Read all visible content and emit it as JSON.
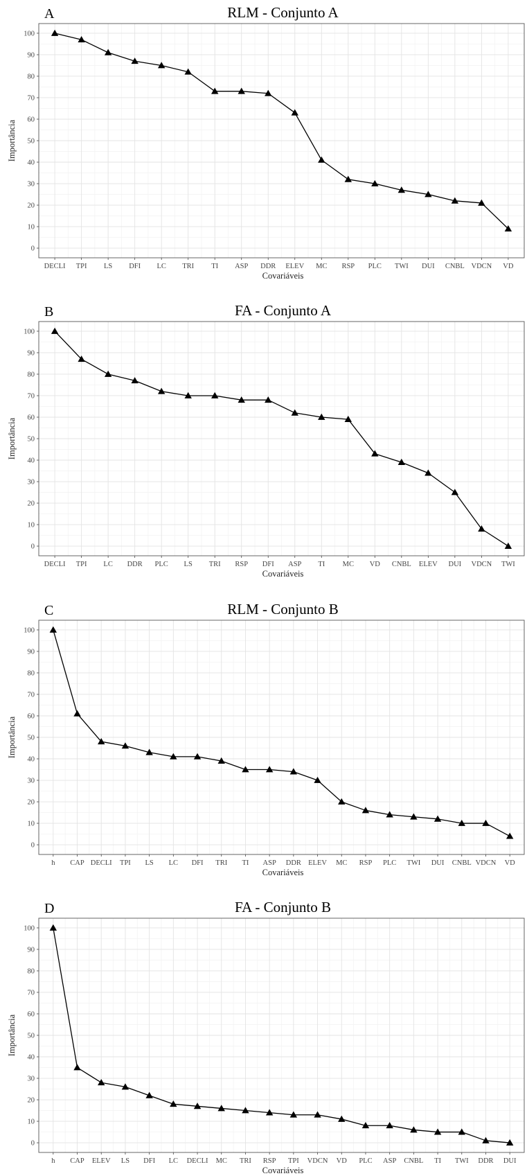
{
  "chart_data": [
    {
      "type": "line",
      "panel_letter": "A",
      "title": "RLM - Conjunto A",
      "xlabel": "Covariáveis",
      "ylabel": "Importância",
      "ylim": [
        0,
        100
      ],
      "yticks": [
        0,
        10,
        20,
        30,
        40,
        50,
        60,
        70,
        80,
        90,
        100
      ],
      "grid": true,
      "categories": [
        "DECLI",
        "TPI",
        "LS",
        "DFI",
        "LC",
        "TRI",
        "TI",
        "ASP",
        "DDR",
        "ELEV",
        "MC",
        "RSP",
        "PLC",
        "TWI",
        "DUI",
        "CNBL",
        "VDCN",
        "VD"
      ],
      "values": [
        100,
        97,
        91,
        87,
        85,
        82,
        73,
        73,
        72,
        63,
        41,
        32,
        30,
        27,
        25,
        22,
        21,
        9
      ]
    },
    {
      "type": "line",
      "panel_letter": "B",
      "title": "FA - Conjunto A",
      "xlabel": "Covariáveis",
      "ylabel": "Importância",
      "ylim": [
        0,
        100
      ],
      "yticks": [
        0,
        10,
        20,
        30,
        40,
        50,
        60,
        70,
        80,
        90,
        100
      ],
      "grid": true,
      "categories": [
        "DECLI",
        "TPI",
        "LC",
        "DDR",
        "PLC",
        "LS",
        "TRI",
        "RSP",
        "DFI",
        "ASP",
        "TI",
        "MC",
        "VD",
        "CNBL",
        "ELEV",
        "DUI",
        "VDCN",
        "TWI"
      ],
      "values": [
        100,
        87,
        80,
        77,
        72,
        70,
        70,
        68,
        68,
        62,
        60,
        59,
        43,
        39,
        34,
        25,
        8,
        0
      ]
    },
    {
      "type": "line",
      "panel_letter": "C",
      "title": "RLM - Conjunto B",
      "xlabel": "Covariáveis",
      "ylabel": "Importância",
      "ylim": [
        0,
        100
      ],
      "yticks": [
        0,
        10,
        20,
        30,
        40,
        50,
        60,
        70,
        80,
        90,
        100
      ],
      "grid": true,
      "categories": [
        "h",
        "CAP",
        "DECLI",
        "TPI",
        "LS",
        "LC",
        "DFI",
        "TRI",
        "TI",
        "ASP",
        "DDR",
        "ELEV",
        "MC",
        "RSP",
        "PLC",
        "TWI",
        "DUI",
        "CNBL",
        "VDCN",
        "VD"
      ],
      "values": [
        100,
        61,
        48,
        46,
        43,
        41,
        41,
        39,
        35,
        35,
        34,
        30,
        20,
        16,
        14,
        13,
        12,
        10,
        10,
        4
      ]
    },
    {
      "type": "line",
      "panel_letter": "D",
      "title": "FA - Conjunto B",
      "xlabel": "Covariáveis",
      "ylabel": "Importância",
      "ylim": [
        0,
        100
      ],
      "yticks": [
        0,
        10,
        20,
        30,
        40,
        50,
        60,
        70,
        80,
        90,
        100
      ],
      "grid": true,
      "categories": [
        "h",
        "CAP",
        "ELEV",
        "LS",
        "DFI",
        "LC",
        "DECLI",
        "MC",
        "TRI",
        "RSP",
        "TPI",
        "VDCN",
        "VD",
        "PLC",
        "ASP",
        "CNBL",
        "TI",
        "TWI",
        "DDR",
        "DUI"
      ],
      "values": [
        100,
        35,
        28,
        26,
        22,
        18,
        17,
        16,
        15,
        14,
        13,
        13,
        11,
        8,
        8,
        6,
        5,
        5,
        1,
        0
      ]
    }
  ]
}
